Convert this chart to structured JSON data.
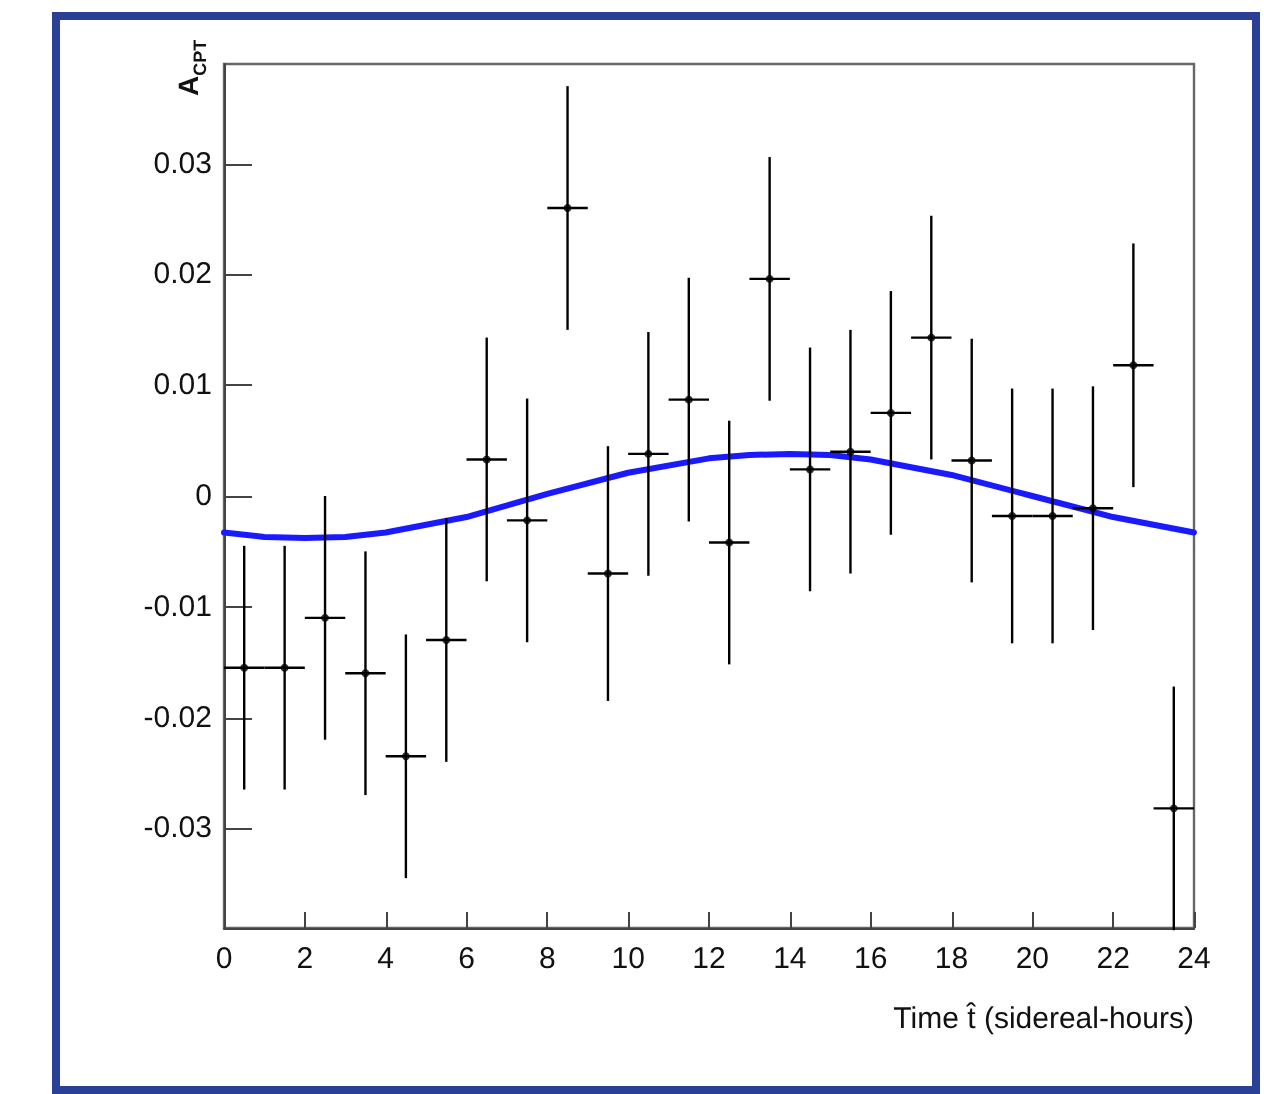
{
  "chart_data": {
    "type": "scatter",
    "xlabel": "Time t̂ (sidereal-hours)",
    "ylabel": "A$_{CPT}$",
    "xlim": [
      0,
      24
    ],
    "xticks": [
      0,
      2,
      4,
      6,
      8,
      10,
      12,
      14,
      16,
      18,
      20,
      22,
      24
    ],
    "ylim": [
      -0.039,
      0.039
    ],
    "yticks": [
      -0.03,
      -0.02,
      -0.01,
      0,
      0.01,
      0.02,
      0.03
    ],
    "grid": false,
    "marker": "circle",
    "series": [
      {
        "color": "#000000",
        "x": [
          0.5,
          1.5,
          2.5,
          3.5,
          4.5,
          5.5,
          6.5,
          7.5,
          8.5,
          9.5,
          10.5,
          11.5,
          12.5,
          13.5,
          14.5,
          15.5,
          16.5,
          17.5,
          18.5,
          19.5,
          20.5,
          21.5,
          22.5,
          23.5
        ],
        "values": [
          -0.0155,
          -0.0155,
          -0.011,
          -0.016,
          -0.0235,
          -0.013,
          0.0033,
          -0.0022,
          0.026,
          -0.007,
          0.0038,
          0.0087,
          -0.0042,
          0.0196,
          0.0024,
          0.004,
          0.0075,
          0.0143,
          0.0032,
          -0.0018,
          -0.0018,
          -0.0011,
          0.0118,
          -0.0282
        ],
        "errors": [
          0.011,
          0.011,
          0.011,
          0.011,
          0.011,
          0.011,
          0.011,
          0.011,
          0.011,
          0.0115,
          0.011,
          0.011,
          0.011,
          0.011,
          0.011,
          0.011,
          0.011,
          0.011,
          0.011,
          0.0115,
          0.0115,
          0.011,
          0.011,
          0.011
        ],
        "xerrors": [
          0.5,
          0.5,
          0.5,
          0.5,
          0.5,
          0.5,
          0.5,
          0.5,
          0.5,
          0.5,
          0.5,
          0.5,
          0.5,
          0.5,
          0.5,
          0.5,
          0.5,
          0.5,
          0.5,
          0.5,
          0.5,
          0.5,
          0.5,
          0.5
        ]
      },
      {
        "type": "line",
        "color": "#1a1aff",
        "marker": "none",
        "x": [
          0,
          1,
          2,
          3,
          4,
          6,
          8,
          10,
          12,
          13,
          14,
          15,
          16,
          18,
          20,
          22,
          24
        ],
        "values": [
          -0.0033,
          -0.0037,
          -0.0038,
          -0.0037,
          -0.0033,
          -0.0019,
          0.0002,
          0.0021,
          0.0034,
          0.0037,
          0.0038,
          0.0037,
          0.0033,
          0.0019,
          0.0,
          -0.0019,
          -0.0033
        ]
      }
    ]
  }
}
